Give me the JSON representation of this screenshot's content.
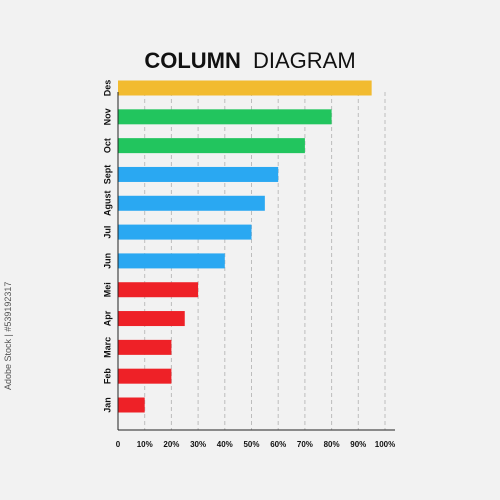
{
  "side_text": "Adobe Stock | #539192317",
  "chart_data": {
    "type": "bar",
    "orientation": "horizontal",
    "title_bold": "COLUMN",
    "title_light": "DIAGRAM",
    "categories": [
      "Jan",
      "Feb",
      "Marc",
      "Apr",
      "Mei",
      "Jun",
      "Jul",
      "Agust",
      "Sept",
      "Oct",
      "Nov",
      "Des"
    ],
    "values": [
      10,
      20,
      20,
      25,
      30,
      40,
      50,
      55,
      60,
      70,
      80,
      95
    ],
    "colors": [
      "#ee2127",
      "#ee2127",
      "#ee2127",
      "#ee2127",
      "#ee2127",
      "#2aa8f2",
      "#2aa8f2",
      "#2aa8f2",
      "#2aa8f2",
      "#22c55e",
      "#22c55e",
      "#f2bb30"
    ],
    "xticks": [
      0,
      10,
      20,
      30,
      40,
      50,
      60,
      70,
      80,
      90,
      100
    ],
    "xtick_labels": [
      "0",
      "10%",
      "20%",
      "30%",
      "40%",
      "50%",
      "60%",
      "70%",
      "80%",
      "90%",
      "100%"
    ],
    "xlim": [
      0,
      100
    ],
    "grid": true
  }
}
